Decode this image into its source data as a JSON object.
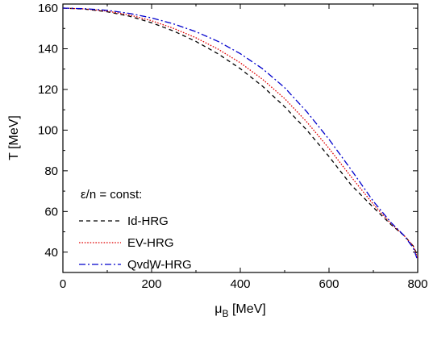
{
  "chart_data": {
    "type": "line",
    "xlabel_main": "μ",
    "xlabel_sub": "B",
    "xlabel_unit": " [MeV]",
    "ylabel": "T [MeV]",
    "xlim": [
      0,
      800
    ],
    "ylim": [
      30,
      162
    ],
    "x_ticks": [
      0,
      200,
      400,
      600,
      800
    ],
    "y_ticks": [
      40,
      60,
      80,
      100,
      120,
      140,
      160
    ],
    "grid": false,
    "legend_title": "ε/n = const:",
    "legend_position": "bottom-left",
    "series": [
      {
        "name": "Id-HRG",
        "color": "#000000",
        "style": "dashed",
        "x": [
          0,
          50,
          100,
          150,
          200,
          250,
          300,
          350,
          400,
          450,
          500,
          550,
          600,
          650,
          700,
          740,
          770,
          790,
          800
        ],
        "y": [
          160,
          159.5,
          158.2,
          156,
          152.8,
          148.7,
          143.6,
          137.5,
          130.2,
          121.6,
          111.5,
          100,
          87,
          73,
          62,
          53.5,
          48,
          43,
          38
        ]
      },
      {
        "name": "EV-HRG",
        "color": "#e00000",
        "style": "dotted",
        "x": [
          0,
          50,
          100,
          150,
          200,
          250,
          300,
          350,
          400,
          450,
          500,
          550,
          600,
          650,
          700,
          740,
          770,
          790,
          800
        ],
        "y": [
          160,
          159.6,
          158.5,
          156.6,
          153.8,
          150,
          145.4,
          139.8,
          133.1,
          125,
          115.5,
          104,
          91,
          77,
          63.5,
          54,
          48,
          43,
          37
        ]
      },
      {
        "name": "QvdW-HRG",
        "color": "#0000cc",
        "style": "dashdot",
        "x": [
          0,
          50,
          100,
          150,
          200,
          250,
          300,
          350,
          400,
          450,
          500,
          550,
          600,
          650,
          700,
          740,
          770,
          790,
          800
        ],
        "y": [
          160,
          159.7,
          158.9,
          157.4,
          155.2,
          152.2,
          148.4,
          143.6,
          137.6,
          130.2,
          120.9,
          109,
          95.5,
          80.5,
          65,
          54.5,
          48,
          42,
          36
        ]
      }
    ]
  }
}
